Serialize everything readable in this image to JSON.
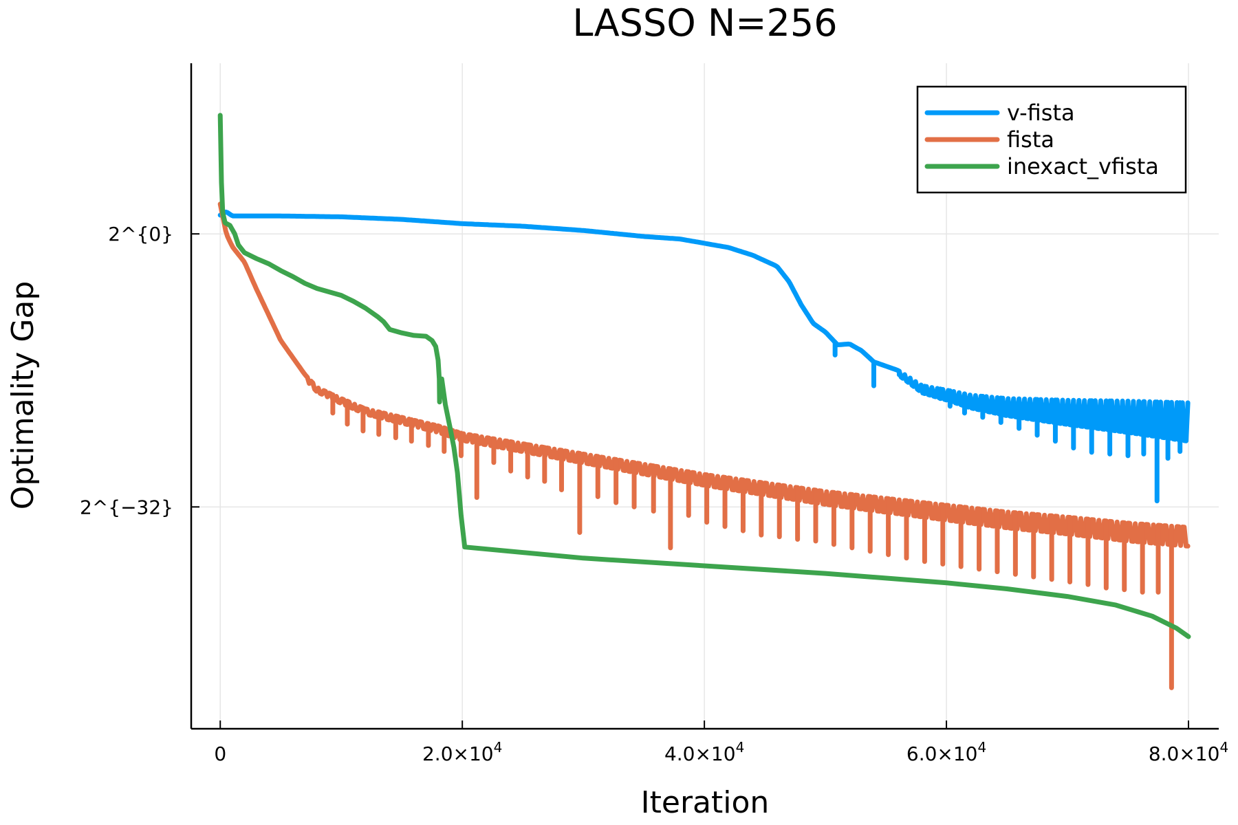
{
  "chart_data": {
    "type": "line",
    "title": "LASSO N=256",
    "xlabel": "Iteration",
    "ylabel": "Optimality Gap",
    "xlim": [
      -2400,
      82500
    ],
    "ylim": [
      -58,
      20
    ],
    "x_ticks": [
      {
        "value": 0,
        "label": "0"
      },
      {
        "value": 20000,
        "label": "2.0×10^4"
      },
      {
        "value": 40000,
        "label": "4.0×10^4"
      },
      {
        "value": 60000,
        "label": "6.0×10^4"
      },
      {
        "value": 80000,
        "label": "8.0×10^4"
      }
    ],
    "y_ticks": [
      {
        "value": 0,
        "label": "2^{0}"
      },
      {
        "value": -32,
        "label": "2^{−32}"
      }
    ],
    "y_scale": "log2 (values given as exponent of 2)",
    "grid": true,
    "legend_position": "top-right",
    "series": [
      {
        "name": "v-fista",
        "color": "#009af9",
        "points": [
          [
            0,
            2.2
          ],
          [
            500,
            2.6
          ],
          [
            1000,
            2.1
          ],
          [
            5000,
            2.1
          ],
          [
            10000,
            2.0
          ],
          [
            15000,
            1.7
          ],
          [
            20000,
            1.2
          ],
          [
            25000,
            0.9
          ],
          [
            30000,
            0.4
          ],
          [
            35000,
            -0.3
          ],
          [
            38000,
            -0.6
          ],
          [
            40000,
            -1.1
          ],
          [
            42000,
            -1.6
          ],
          [
            44000,
            -2.5
          ],
          [
            46000,
            -3.8
          ],
          [
            47000,
            -5.6
          ],
          [
            48000,
            -8.3
          ],
          [
            49000,
            -10.5
          ],
          [
            50000,
            -11.5
          ],
          [
            51000,
            -13.0
          ],
          [
            52000,
            -12.9
          ],
          [
            53000,
            -13.7
          ],
          [
            54000,
            -15.0
          ],
          [
            56000,
            -16.0
          ],
          [
            58000,
            -17.8
          ],
          [
            60000,
            -18.3
          ],
          [
            62000,
            -18.9
          ],
          [
            65000,
            -19.3
          ],
          [
            70000,
            -19.5
          ],
          [
            75000,
            -19.6
          ],
          [
            80000,
            -19.8
          ]
        ],
        "band": {
          "from": 56000,
          "depth_start": 0.5,
          "depth_end": 4.5,
          "period": 450
        },
        "spikes": [
          [
            50800,
            -14.2
          ],
          [
            54000,
            -17.8
          ],
          [
            56100,
            -16.5
          ],
          [
            58200,
            -18.6
          ],
          [
            59500,
            -19.3
          ],
          [
            60300,
            -20.2
          ],
          [
            61500,
            -21.0
          ],
          [
            63000,
            -21.5
          ],
          [
            64500,
            -22.1
          ],
          [
            66000,
            -22.8
          ],
          [
            67500,
            -23.6
          ],
          [
            69000,
            -24.3
          ],
          [
            70500,
            -25.1
          ],
          [
            72000,
            -25.6
          ],
          [
            73500,
            -25.8
          ],
          [
            75000,
            -26.0
          ],
          [
            76300,
            -25.8
          ],
          [
            77400,
            -31.3
          ],
          [
            78300,
            -26.3
          ],
          [
            79300,
            -25.5
          ]
        ]
      },
      {
        "name": "fista",
        "color": "#e26f46",
        "points": [
          [
            0,
            3.5
          ],
          [
            500,
            0
          ],
          [
            1000,
            -1.5
          ],
          [
            2000,
            -3.3
          ],
          [
            3000,
            -6.5
          ],
          [
            4000,
            -9.5
          ],
          [
            5000,
            -12.5
          ],
          [
            6000,
            -14.5
          ],
          [
            7000,
            -16.5
          ],
          [
            8000,
            -18.0
          ],
          [
            10000,
            -19.3
          ],
          [
            12000,
            -20.5
          ],
          [
            15000,
            -21.5
          ],
          [
            18000,
            -22.5
          ],
          [
            20000,
            -23.4
          ],
          [
            25000,
            -24.6
          ],
          [
            30000,
            -25.8
          ],
          [
            35000,
            -27.0
          ],
          [
            40000,
            -28.2
          ],
          [
            45000,
            -29.2
          ],
          [
            50000,
            -30.2
          ],
          [
            55000,
            -31.0
          ],
          [
            60000,
            -31.8
          ],
          [
            65000,
            -32.6
          ],
          [
            70000,
            -33.2
          ],
          [
            75000,
            -33.9
          ],
          [
            80000,
            -34.4
          ]
        ],
        "band": {
          "from": 7000,
          "depth_start": 0.5,
          "depth_end": 2.2,
          "period": 500
        },
        "spikes": [
          [
            9300,
            -21.0
          ],
          [
            10500,
            -22.3
          ],
          [
            11800,
            -23.1
          ],
          [
            13100,
            -23.5
          ],
          [
            14500,
            -23.9
          ],
          [
            15800,
            -24.3
          ],
          [
            17200,
            -24.8
          ],
          [
            18500,
            -25.5
          ],
          [
            19900,
            -26.0
          ],
          [
            21200,
            -30.9
          ],
          [
            22600,
            -26.8
          ],
          [
            24000,
            -27.8
          ],
          [
            25400,
            -28.5
          ],
          [
            26800,
            -29.0
          ],
          [
            28200,
            -30.0
          ],
          [
            29700,
            -35.0
          ],
          [
            31200,
            -30.8
          ],
          [
            32700,
            -31.5
          ],
          [
            34200,
            -32.0
          ],
          [
            35800,
            -32.5
          ],
          [
            37200,
            -36.8
          ],
          [
            38700,
            -33.0
          ],
          [
            40200,
            -33.8
          ],
          [
            41700,
            -34.3
          ],
          [
            43200,
            -34.8
          ],
          [
            44700,
            -35.3
          ],
          [
            46200,
            -35.5
          ],
          [
            47700,
            -35.8
          ],
          [
            49200,
            -36.0
          ],
          [
            50700,
            -36.4
          ],
          [
            52200,
            -36.8
          ],
          [
            53700,
            -37.2
          ],
          [
            55200,
            -37.6
          ],
          [
            56700,
            -38.0
          ],
          [
            58200,
            -38.4
          ],
          [
            59700,
            -38.7
          ],
          [
            61200,
            -39.0
          ],
          [
            62700,
            -39.3
          ],
          [
            64200,
            -39.6
          ],
          [
            65700,
            -39.9
          ],
          [
            67200,
            -40.2
          ],
          [
            68700,
            -40.5
          ],
          [
            70200,
            -40.8
          ],
          [
            71700,
            -41.1
          ],
          [
            73200,
            -41.5
          ],
          [
            74700,
            -41.7
          ],
          [
            76200,
            -42.0
          ],
          [
            77500,
            -42.0
          ],
          [
            78600,
            -53.2
          ]
        ]
      },
      {
        "name": "inexact_vfista",
        "color": "#3da44d",
        "points": [
          [
            0,
            13.9
          ],
          [
            100,
            6.0
          ],
          [
            200,
            2.5
          ],
          [
            400,
            1.3
          ],
          [
            800,
            1.0
          ],
          [
            1200,
            0.0
          ],
          [
            1500,
            -1.3
          ],
          [
            2000,
            -2.2
          ],
          [
            3000,
            -2.9
          ],
          [
            4000,
            -3.5
          ],
          [
            5000,
            -4.3
          ],
          [
            6000,
            -5.0
          ],
          [
            7000,
            -5.8
          ],
          [
            8000,
            -6.4
          ],
          [
            10000,
            -7.2
          ],
          [
            11000,
            -7.9
          ],
          [
            12000,
            -8.7
          ],
          [
            13000,
            -9.7
          ],
          [
            13500,
            -10.3
          ],
          [
            14000,
            -11.2
          ],
          [
            15000,
            -11.6
          ],
          [
            16000,
            -11.9
          ],
          [
            17000,
            -12.0
          ],
          [
            17500,
            -12.5
          ],
          [
            17800,
            -13.2
          ],
          [
            18000,
            -14.8
          ],
          [
            18100,
            -17.0
          ],
          [
            18120,
            -19.7
          ],
          [
            18150,
            -17.9
          ],
          [
            18300,
            -17.0
          ],
          [
            18600,
            -20.0
          ],
          [
            19000,
            -22.8
          ],
          [
            19300,
            -25.0
          ],
          [
            19600,
            -28.0
          ],
          [
            19900,
            -33.0
          ],
          [
            20200,
            -36.7
          ],
          [
            30000,
            -38.0
          ],
          [
            40000,
            -38.9
          ],
          [
            50000,
            -39.8
          ],
          [
            60000,
            -40.9
          ],
          [
            65000,
            -41.6
          ],
          [
            70000,
            -42.5
          ],
          [
            74000,
            -43.5
          ],
          [
            77000,
            -44.8
          ],
          [
            79000,
            -46.2
          ],
          [
            80000,
            -47.2
          ]
        ]
      }
    ]
  }
}
